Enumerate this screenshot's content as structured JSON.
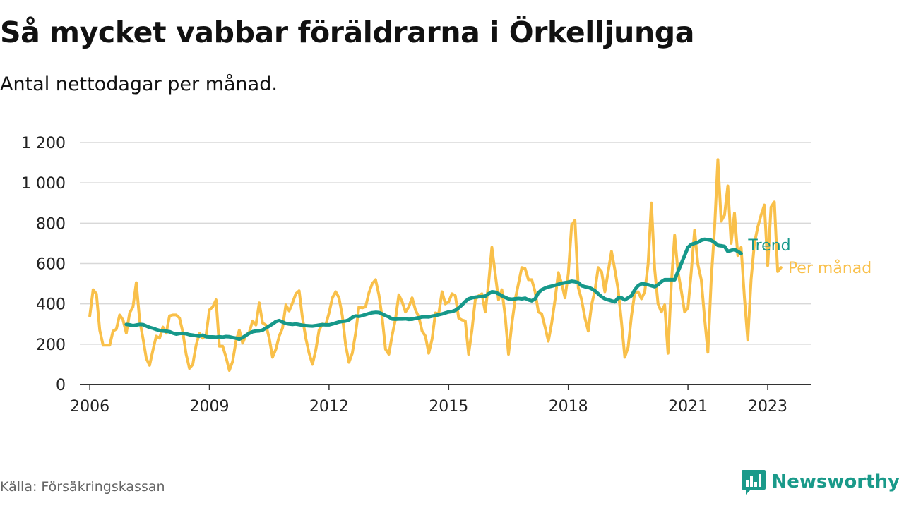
{
  "title": "Så mycket vabbar föräldrarna i Örkelljunga",
  "subtitle": "Antal nettodagar per månad.",
  "source": "Källa: Försäkringskassan",
  "brand": "Newsworthy",
  "colors": {
    "monthly": "#f9c04a",
    "trend": "#16988a",
    "grid": "#d8d8d8",
    "axis": "#333333",
    "brand": "#1a9a8a"
  },
  "icons": {
    "brand_logo": "bar-chart-speech-bubble-icon"
  },
  "chart_data": {
    "type": "line",
    "title": "Så mycket vabbar föräldrarna i Örkelljunga",
    "subtitle": "Antal nettodagar per månad.",
    "xlabel": "",
    "ylabel": "",
    "x_unit": "decimal year",
    "xlim": [
      2005.75,
      2024.08
    ],
    "ylim": [
      0,
      1200
    ],
    "yticks": [
      0,
      200,
      400,
      600,
      800,
      1000,
      1200
    ],
    "ytick_labels": [
      "0",
      "200",
      "400",
      "600",
      "800",
      "1 000",
      "1 200"
    ],
    "xticks": [
      2006,
      2009,
      2012,
      2015,
      2018,
      2021,
      2023
    ],
    "xtick_labels": [
      "2006",
      "2009",
      "2012",
      "2015",
      "2018",
      "2021",
      "2023"
    ],
    "grid": true,
    "legend": "inline labels at right end of lines",
    "series": [
      {
        "name": "Per månad",
        "x_start": 2006.0,
        "x_step_months": 1,
        "values": [
          340,
          470,
          450,
          270,
          195,
          195,
          195,
          265,
          275,
          345,
          320,
          255,
          355,
          385,
          505,
          320,
          230,
          130,
          95,
          170,
          240,
          230,
          285,
          255,
          340,
          345,
          345,
          330,
          260,
          150,
          80,
          100,
          195,
          255,
          230,
          245,
          370,
          385,
          420,
          190,
          190,
          135,
          70,
          115,
          215,
          270,
          205,
          245,
          260,
          315,
          295,
          405,
          305,
          295,
          230,
          135,
          175,
          240,
          280,
          395,
          365,
          405,
          450,
          465,
          330,
          230,
          155,
          100,
          170,
          270,
          300,
          295,
          355,
          430,
          460,
          430,
          340,
          195,
          110,
          155,
          255,
          385,
          380,
          385,
          455,
          500,
          520,
          445,
          330,
          175,
          150,
          245,
          325,
          445,
          410,
          360,
          385,
          430,
          370,
          335,
          265,
          240,
          155,
          225,
          355,
          350,
          460,
          400,
          410,
          450,
          440,
          330,
          320,
          315,
          150,
          270,
          420,
          440,
          450,
          360,
          500,
          680,
          550,
          420,
          470,
          340,
          150,
          300,
          420,
          500,
          580,
          575,
          520,
          520,
          460,
          360,
          350,
          285,
          215,
          305,
          420,
          555,
          500,
          430,
          550,
          790,
          815,
          480,
          420,
          330,
          265,
          395,
          465,
          580,
          560,
          460,
          560,
          660,
          570,
          470,
          310,
          135,
          185,
          340,
          455,
          460,
          425,
          460,
          595,
          900,
          570,
          400,
          360,
          395,
          155,
          500,
          740,
          560,
          465,
          360,
          380,
          560,
          765,
          595,
          520,
          330,
          160,
          520,
          770,
          1115,
          810,
          840,
          985,
          700,
          850,
          640,
          680,
          430,
          220,
          520,
          700,
          780,
          840,
          890,
          590,
          880,
          905,
          560,
          580
        ]
      },
      {
        "name": "Trend",
        "x_start": 2006.917,
        "x_step_months": 1,
        "values": [
          298,
          296,
          292,
          295,
          298,
          297,
          290,
          283,
          279,
          273,
          268,
          266,
          264,
          262,
          255,
          250,
          253,
          254,
          252,
          247,
          245,
          242,
          240,
          245,
          237,
          236,
          236,
          235,
          237,
          235,
          238,
          237,
          233,
          230,
          225,
          233,
          244,
          254,
          262,
          265,
          266,
          270,
          280,
          290,
          300,
          312,
          317,
          310,
          303,
          300,
          298,
          300,
          297,
          294,
          292,
          291,
          290,
          292,
          295,
          297,
          296,
          296,
          300,
          305,
          310,
          313,
          315,
          320,
          333,
          340,
          338,
          342,
          347,
          352,
          356,
          358,
          357,
          350,
          342,
          335,
          325,
          324,
          325,
          325,
          326,
          323,
          324,
          328,
          331,
          335,
          336,
          335,
          339,
          342,
          346,
          350,
          355,
          360,
          362,
          368,
          380,
          395,
          412,
          425,
          430,
          433,
          435,
          436,
          438,
          450,
          460,
          458,
          450,
          440,
          432,
          425,
          423,
          425,
          427,
          425,
          428,
          420,
          415,
          425,
          455,
          470,
          478,
          484,
          488,
          492,
          497,
          502,
          505,
          508,
          512,
          510,
          505,
          490,
          485,
          482,
          475,
          465,
          450,
          435,
          425,
          420,
          415,
          410,
          430,
          430,
          420,
          430,
          440,
          470,
          490,
          500,
          498,
          495,
          490,
          485,
          495,
          510,
          520,
          520,
          520,
          520,
          560,
          600,
          640,
          680,
          695,
          700,
          705,
          715,
          720,
          718,
          715,
          705,
          690,
          688,
          685,
          660,
          665,
          670,
          660,
          650
        ]
      }
    ]
  }
}
